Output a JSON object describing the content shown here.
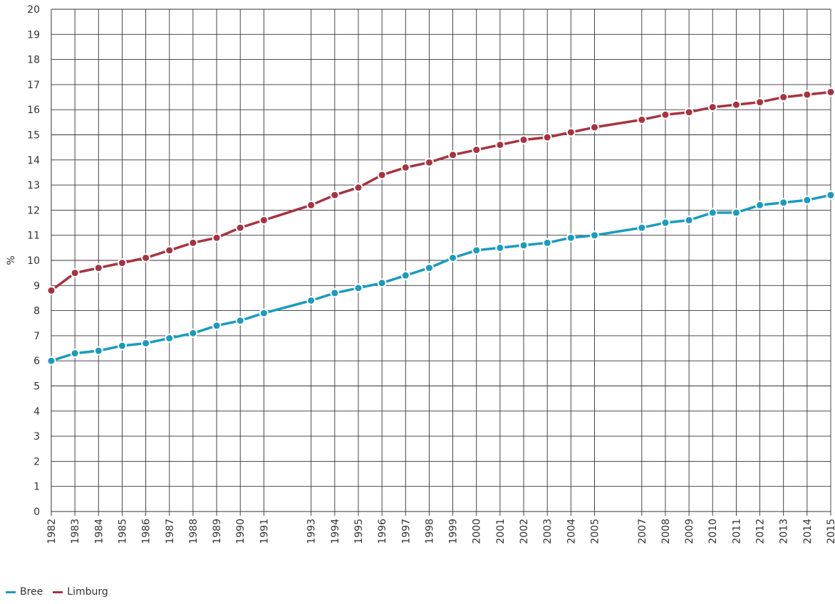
{
  "chart_data": {
    "type": "line",
    "ylabel": "%",
    "xlabel": "",
    "ylim": [
      0,
      20
    ],
    "yticks": [
      "0",
      "1",
      "2",
      "3",
      "4",
      "5",
      "6",
      "7",
      "8",
      "9",
      "10",
      "11",
      "12",
      "13",
      "14",
      "15",
      "16",
      "17",
      "18",
      "19",
      "20"
    ],
    "grid": true,
    "x": [
      1982,
      1983,
      1984,
      1985,
      1986,
      1987,
      1988,
      1989,
      1990,
      1991,
      1993,
      1994,
      1995,
      1996,
      1997,
      1998,
      1999,
      2000,
      2001,
      2002,
      2003,
      2004,
      2005,
      2007,
      2008,
      2009,
      2010,
      2011,
      2012,
      2013,
      2014,
      2015
    ],
    "xtick_labels": [
      "1982",
      "1983",
      "1984",
      "1985",
      "1986",
      "1987",
      "1988",
      "1989",
      "1990",
      "1991",
      "1993",
      "1994",
      "1995",
      "1996",
      "1997",
      "1998",
      "1999",
      "2000",
      "2001",
      "2002",
      "2003",
      "2004",
      "2005",
      "2007",
      "2008",
      "2009",
      "2010",
      "2011",
      "2012",
      "2013",
      "2014",
      "2015"
    ],
    "series": [
      {
        "name": "Bree",
        "color": "#1a9bc0",
        "values": [
          6.0,
          6.3,
          6.4,
          6.6,
          6.7,
          6.9,
          7.1,
          7.4,
          7.6,
          7.9,
          8.4,
          8.7,
          8.9,
          9.1,
          9.4,
          9.7,
          10.1,
          10.4,
          10.5,
          10.6,
          10.7,
          10.9,
          11.0,
          11.3,
          11.5,
          11.6,
          11.9,
          11.9,
          12.2,
          12.3,
          12.4,
          12.6
        ]
      },
      {
        "name": "Limburg",
        "color": "#a83240",
        "values": [
          8.8,
          9.5,
          9.7,
          9.9,
          10.1,
          10.4,
          10.7,
          10.9,
          11.3,
          11.6,
          12.2,
          12.6,
          12.9,
          13.4,
          13.7,
          13.9,
          14.2,
          14.4,
          14.6,
          14.8,
          14.9,
          15.1,
          15.3,
          15.6,
          15.8,
          15.9,
          16.1,
          16.2,
          16.3,
          16.5,
          16.6,
          16.7
        ]
      }
    ],
    "legend_position": "bottom-left"
  }
}
